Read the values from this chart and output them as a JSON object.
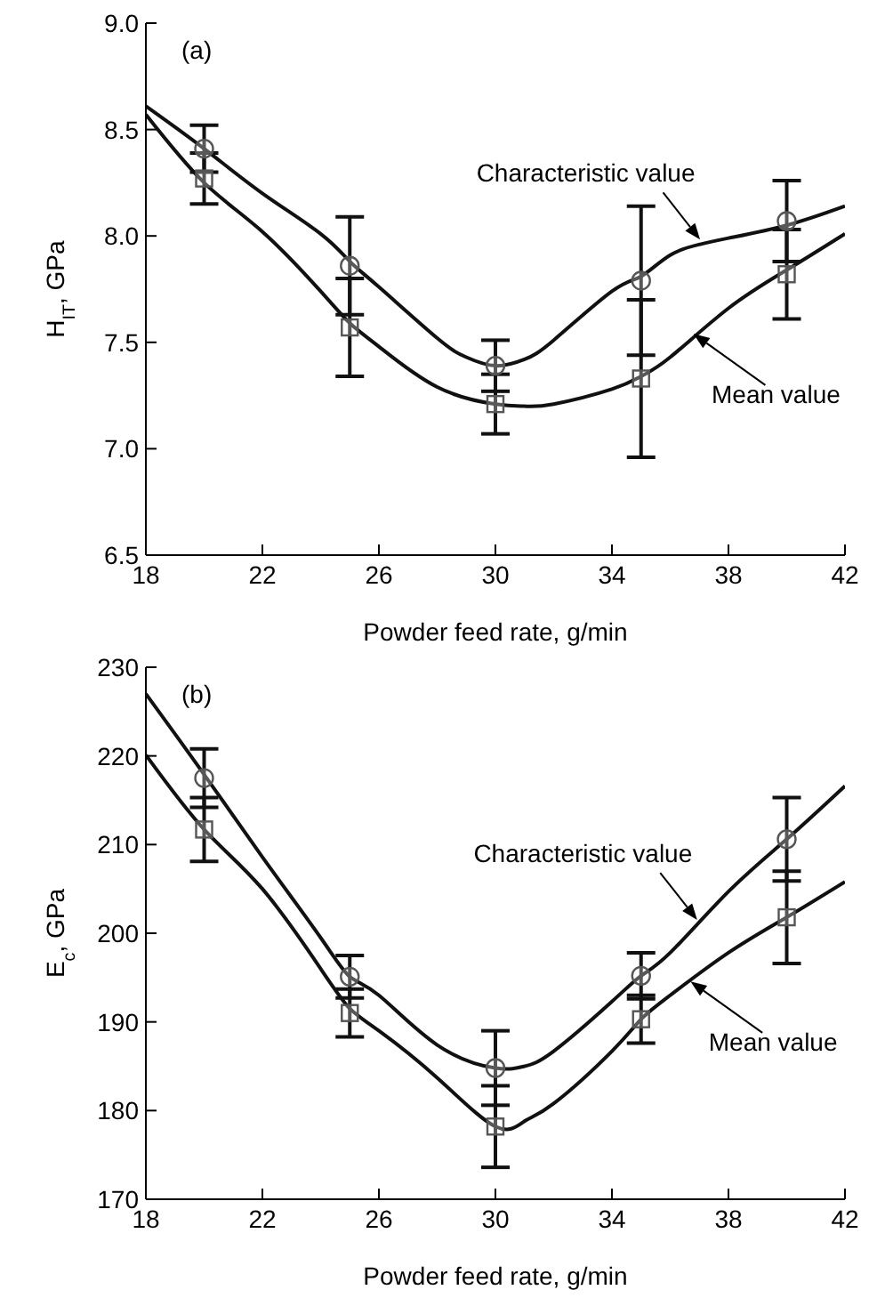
{
  "chart_data": [
    {
      "type": "scatter",
      "xlabel": "Powder feed rate, g/min",
      "ylabel": "H$_{IT}$, GPa",
      "xlim": [
        18,
        42
      ],
      "xticks": [
        18,
        22,
        26,
        30,
        34,
        38,
        42
      ],
      "ylim": [
        6.5,
        9.0
      ],
      "yticks": [
        6.5,
        {
          "value": 7,
          "label": "7.0"
        },
        7.5,
        {
          "value": 8,
          "label": "8.0"
        },
        8.5,
        {
          "value": 9,
          "label": "9.0"
        }
      ],
      "grid": false,
      "legend": false,
      "annotations": [
        "(a)",
        {
          "text": "Characteristic value",
          "x": 37.1,
          "y": 7.97
        },
        {
          "text": "Mean value",
          "x": 36.7,
          "y": 7.55
        }
      ],
      "series": [
        {
          "marker": "circle",
          "color": "#555555",
          "x": [
            20,
            25,
            30,
            35,
            40
          ],
          "values": [
            8.41,
            7.86,
            7.39,
            7.79,
            8.07
          ],
          "errors": [
            0.11,
            0.23,
            0.12,
            0.35,
            0.19
          ]
        },
        {
          "marker": "square",
          "color": "#555555",
          "x": [
            20,
            25,
            30,
            35,
            40
          ],
          "values": [
            8.27,
            7.57,
            7.21,
            7.33,
            7.82
          ],
          "errors": [
            0.12,
            0.23,
            0.14,
            0.37,
            0.21
          ]
        },
        {
          "type": "line",
          "marker": "none",
          "color": "#111111",
          "x": [
            18,
            20,
            22,
            24,
            25,
            26,
            28,
            29,
            30,
            31,
            32,
            34,
            35,
            36,
            37,
            38,
            40,
            42
          ],
          "values": [
            8.61,
            8.41,
            8.2,
            8.01,
            7.88,
            7.76,
            7.52,
            7.43,
            7.39,
            7.42,
            7.51,
            7.74,
            7.81,
            7.91,
            7.96,
            7.99,
            8.05,
            8.14
          ]
        },
        {
          "type": "line",
          "marker": "none",
          "color": "#111111",
          "x": [
            18,
            20,
            22,
            24,
            25,
            26,
            28,
            30,
            31,
            32,
            34,
            35,
            36,
            38,
            40,
            42
          ],
          "values": [
            8.57,
            8.25,
            8.02,
            7.74,
            7.59,
            7.48,
            7.29,
            7.21,
            7.2,
            7.21,
            7.28,
            7.34,
            7.43,
            7.66,
            7.84,
            8.01
          ]
        }
      ]
    },
    {
      "type": "scatter",
      "xlabel": "Powder feed rate, g/min",
      "ylabel": "E$_{c}$, GPa",
      "xlim": [
        18,
        42
      ],
      "xticks": [
        18,
        22,
        26,
        30,
        34,
        38,
        42
      ],
      "ylim": [
        170,
        230
      ],
      "yticks": [
        170,
        180,
        190,
        200,
        210,
        220,
        230
      ],
      "grid": false,
      "legend": false,
      "annotations": [
        "(b)",
        {
          "text": "Characteristic value",
          "x": 37.0,
          "y": 201.2
        },
        {
          "text": "Mean value",
          "x": 36.6,
          "y": 194.8
        }
      ],
      "series": [
        {
          "marker": "circle",
          "color": "#555555",
          "x": [
            20,
            25,
            30,
            35,
            40
          ],
          "values": [
            217.5,
            195.1,
            184.8,
            195.2,
            210.6
          ],
          "errors": [
            3.3,
            2.4,
            4.2,
            2.6,
            4.7
          ]
        },
        {
          "marker": "square",
          "color": "#555555",
          "x": [
            20,
            25,
            30,
            35,
            40
          ],
          "values": [
            211.7,
            191.0,
            178.2,
            190.3,
            201.8
          ],
          "errors": [
            3.6,
            2.7,
            4.6,
            2.7,
            5.2
          ]
        },
        {
          "type": "line",
          "marker": "none",
          "color": "#111111",
          "x": [
            18,
            20,
            22,
            24,
            25,
            26,
            28,
            30,
            31,
            32,
            34,
            35,
            36,
            38,
            40,
            42
          ],
          "values": [
            227.0,
            217.9,
            208.6,
            199.5,
            195.1,
            193.0,
            187.4,
            184.8,
            185.0,
            186.7,
            192.3,
            195.2,
            197.8,
            204.7,
            210.6,
            216.6
          ]
        },
        {
          "type": "line",
          "marker": "none",
          "color": "#111111",
          "x": [
            18,
            20,
            22,
            24,
            25,
            26,
            28,
            30,
            31,
            32,
            34,
            35,
            36,
            38,
            40,
            42
          ],
          "values": [
            220.1,
            211.7,
            205.0,
            196.0,
            191.5,
            189.0,
            183.7,
            178.2,
            178.8,
            180.8,
            186.7,
            190.3,
            193.0,
            197.8,
            201.8,
            205.8
          ]
        }
      ]
    }
  ]
}
